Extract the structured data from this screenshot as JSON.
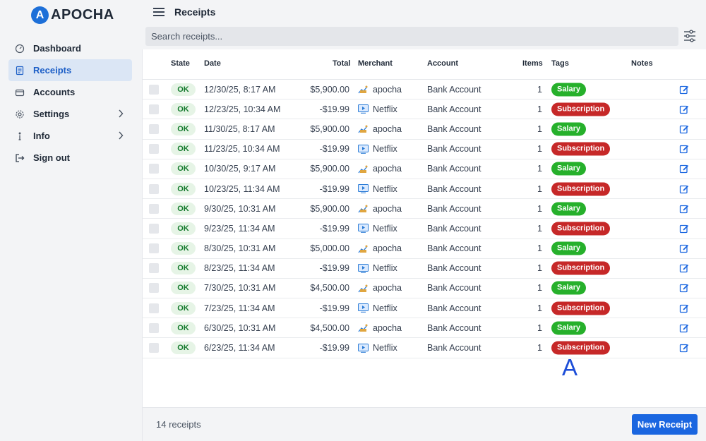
{
  "app": {
    "logo_letter": "A",
    "logo_text": "APOCHA",
    "brand_color": "#1d6fd8"
  },
  "sidebar": {
    "items": [
      {
        "label": "Dashboard",
        "icon": "dashboard-icon"
      },
      {
        "label": "Receipts",
        "icon": "receipt-icon",
        "active": true
      },
      {
        "label": "Accounts",
        "icon": "wallet-icon"
      },
      {
        "label": "Settings",
        "icon": "gear-icon",
        "chevron": true
      },
      {
        "label": "Info",
        "icon": "info-icon",
        "chevron": true
      },
      {
        "label": "Sign out",
        "icon": "sign-out-icon"
      }
    ]
  },
  "header": {
    "title": "Receipts",
    "search_placeholder": "Search receipts..."
  },
  "table": {
    "columns": [
      "State",
      "Date",
      "Total",
      "Merchant",
      "Account",
      "Items",
      "Tags",
      "Notes"
    ],
    "rows": [
      {
        "state": "OK",
        "date": "12/30/25, 8:17 AM",
        "total": "$5,900.00",
        "merchant": "apocha",
        "account": "Bank Account",
        "items": "1",
        "tag": "Salary"
      },
      {
        "state": "OK",
        "date": "12/23/25, 10:34 AM",
        "total": "-$19.99",
        "merchant": "Netflix",
        "account": "Bank Account",
        "items": "1",
        "tag": "Subscription"
      },
      {
        "state": "OK",
        "date": "11/30/25, 8:17 AM",
        "total": "$5,900.00",
        "merchant": "apocha",
        "account": "Bank Account",
        "items": "1",
        "tag": "Salary"
      },
      {
        "state": "OK",
        "date": "11/23/25, 10:34 AM",
        "total": "-$19.99",
        "merchant": "Netflix",
        "account": "Bank Account",
        "items": "1",
        "tag": "Subscription"
      },
      {
        "state": "OK",
        "date": "10/30/25, 9:17 AM",
        "total": "$5,900.00",
        "merchant": "apocha",
        "account": "Bank Account",
        "items": "1",
        "tag": "Salary"
      },
      {
        "state": "OK",
        "date": "10/23/25, 11:34 AM",
        "total": "-$19.99",
        "merchant": "Netflix",
        "account": "Bank Account",
        "items": "1",
        "tag": "Subscription"
      },
      {
        "state": "OK",
        "date": "9/30/25, 10:31 AM",
        "total": "$5,900.00",
        "merchant": "apocha",
        "account": "Bank Account",
        "items": "1",
        "tag": "Salary"
      },
      {
        "state": "OK",
        "date": "9/23/25, 11:34 AM",
        "total": "-$19.99",
        "merchant": "Netflix",
        "account": "Bank Account",
        "items": "1",
        "tag": "Subscription"
      },
      {
        "state": "OK",
        "date": "8/30/25, 10:31 AM",
        "total": "$5,000.00",
        "merchant": "apocha",
        "account": "Bank Account",
        "items": "1",
        "tag": "Salary"
      },
      {
        "state": "OK",
        "date": "8/23/25, 11:34 AM",
        "total": "-$19.99",
        "merchant": "Netflix",
        "account": "Bank Account",
        "items": "1",
        "tag": "Subscription"
      },
      {
        "state": "OK",
        "date": "7/30/25, 10:31 AM",
        "total": "$4,500.00",
        "merchant": "apocha",
        "account": "Bank Account",
        "items": "1",
        "tag": "Salary"
      },
      {
        "state": "OK",
        "date": "7/23/25, 11:34 AM",
        "total": "-$19.99",
        "merchant": "Netflix",
        "account": "Bank Account",
        "items": "1",
        "tag": "Subscription"
      },
      {
        "state": "OK",
        "date": "6/30/25, 10:31 AM",
        "total": "$4,500.00",
        "merchant": "apocha",
        "account": "Bank Account",
        "items": "1",
        "tag": "Salary"
      },
      {
        "state": "OK",
        "date": "6/23/25, 11:34 AM",
        "total": "-$19.99",
        "merchant": "Netflix",
        "account": "Bank Account",
        "items": "1",
        "tag": "Subscription"
      }
    ]
  },
  "tag_colors": {
    "Salary": "#26b02b",
    "Subscription": "#c62828"
  },
  "annotation": "A",
  "footer": {
    "count": "14 receipts",
    "new_button": "New Receipt"
  }
}
